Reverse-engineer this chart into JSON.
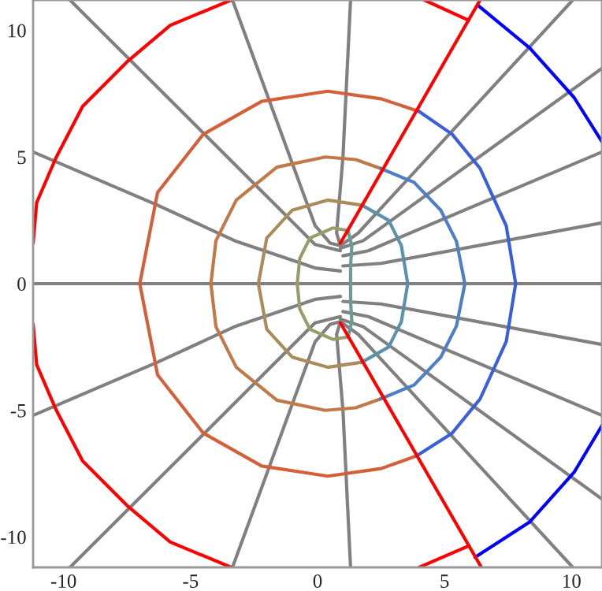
{
  "chart_data": {
    "type": "line",
    "xlim": [
      -11.2,
      11.2
    ],
    "ylim": [
      -11.2,
      11.2
    ],
    "xticks": [
      -10,
      -5,
      0,
      5,
      10
    ],
    "yticks": [
      -10,
      -5,
      0,
      5,
      10
    ],
    "grid": false,
    "marker": "none",
    "line_style": "solid",
    "series": [
      {
        "color": "#808080",
        "x": [
          -11.2,
          11.2
        ],
        "values": [
          0,
          0
        ]
      },
      {
        "color": "#808080",
        "x": [
          -9.75,
          -0.1,
          0.9
        ],
        "values": [
          11.2,
          1.55,
          1.3
        ]
      },
      {
        "color": "#808080",
        "x": [
          -3.35,
          -0.72,
          -0.1,
          0.5,
          0.9
        ],
        "values": [
          11.2,
          4.0,
          2.3,
          1.6,
          1.5
        ]
      },
      {
        "color": "#808080",
        "x": [
          -11.2,
          -6.3,
          -3.2,
          -0.1,
          0.9
        ],
        "values": [
          5.2,
          3.1,
          1.67,
          0.62,
          0.5
        ]
      },
      {
        "color": "#808080",
        "x": [
          1.3,
          1.0,
          0.75,
          0.9
        ],
        "values": [
          11.2,
          5.0,
          2.0,
          1.5
        ]
      },
      {
        "color": "#808080",
        "x": [
          0.9,
          1.6,
          10.05
        ],
        "values": [
          1.5,
          2.0,
          11.2
        ]
      },
      {
        "color": "#808080",
        "x": [
          0.9,
          1.8,
          11.2
        ],
        "values": [
          1.4,
          1.7,
          8.5
        ]
      },
      {
        "color": "#808080",
        "x": [
          1.0,
          2.0,
          11.2
        ],
        "values": [
          1.1,
          1.3,
          5.2
        ]
      },
      {
        "color": "#808080",
        "x": [
          1.0,
          2.5,
          11.2
        ],
        "values": [
          0.7,
          0.8,
          2.4
        ]
      },
      {
        "color": "#808080",
        "x": [
          -9.75,
          -0.1,
          0.9
        ],
        "values": [
          -11.2,
          -1.55,
          -1.3
        ]
      },
      {
        "color": "#808080",
        "x": [
          -3.35,
          -0.72,
          -0.1,
          0.5,
          0.9
        ],
        "values": [
          -11.2,
          -4.0,
          -2.3,
          -1.6,
          -1.5
        ]
      },
      {
        "color": "#808080",
        "x": [
          -11.2,
          -6.3,
          -3.2,
          -0.1,
          0.9
        ],
        "values": [
          -5.2,
          -3.1,
          -1.67,
          -0.62,
          -0.5
        ]
      },
      {
        "color": "#808080",
        "x": [
          1.3,
          1.0,
          0.75,
          0.9
        ],
        "values": [
          -11.2,
          -5.0,
          -2.0,
          -1.5
        ]
      },
      {
        "color": "#808080",
        "x": [
          0.9,
          1.6,
          10.05
        ],
        "values": [
          -1.5,
          -2.0,
          -11.2
        ]
      },
      {
        "color": "#808080",
        "x": [
          0.9,
          1.8,
          11.2
        ],
        "values": [
          -1.4,
          -1.7,
          -8.5
        ]
      },
      {
        "color": "#808080",
        "x": [
          1.0,
          2.0,
          11.2
        ],
        "values": [
          -1.1,
          -1.3,
          -5.2
        ]
      },
      {
        "color": "#808080",
        "x": [
          1.0,
          2.5,
          11.2
        ],
        "values": [
          -0.7,
          -0.8,
          -2.4
        ]
      },
      {
        "color": "#ff0000",
        "x": [
          4.2,
          5.94
        ],
        "values": [
          11.2,
          10.4
        ]
      },
      {
        "color": "#ff0000",
        "x": [
          -3.4,
          -5.8,
          -7.5,
          -9.25,
          -10.3,
          -11.06,
          -11.2
        ],
        "values": [
          11.2,
          10.2,
          8.76,
          7.0,
          4.97,
          3.2,
          1.6
        ]
      },
      {
        "color": "#ff0000",
        "x": [
          -11.2,
          -11.06,
          -10.3,
          -9.25,
          -7.5,
          -5.8,
          -3.4
        ],
        "values": [
          -1.6,
          -3.2,
          -4.97,
          -7.0,
          -8.76,
          -10.2,
          -11.2
        ]
      },
      {
        "color": "#ff0000",
        "x": [
          4.0,
          5.96
        ],
        "values": [
          -11.2,
          -10.35
        ]
      },
      {
        "color": "#d4603a",
        "x": [
          4.0,
          2.5,
          0.4,
          -2.2,
          -4.5,
          -6.3,
          -7.0,
          -6.3,
          -4.5,
          -2.2,
          0.4,
          2.5,
          3.9
        ],
        "values": [
          6.8,
          7.3,
          7.6,
          7.2,
          5.9,
          3.6,
          0,
          -3.6,
          -5.9,
          -7.2,
          -7.6,
          -7.3,
          -6.8
        ]
      },
      {
        "color": "#c07a48",
        "x": [
          2.48,
          1.5,
          0.3,
          -1.6,
          -3.2,
          -4.0,
          -4.2,
          -4.0,
          -3.2,
          -1.6,
          0.3,
          1.5,
          2.48
        ],
        "values": [
          4.55,
          4.9,
          5.0,
          4.6,
          3.3,
          1.7,
          0,
          -1.7,
          -3.3,
          -4.6,
          -5.0,
          -4.9,
          -4.55
        ]
      },
      {
        "color": "#a88c5c",
        "x": [
          1.75,
          0.4,
          -1.0,
          -2.0,
          -2.33,
          -2.0,
          -1.0,
          0.4,
          1.75
        ],
        "values": [
          3.1,
          3.3,
          2.9,
          1.8,
          0,
          -1.8,
          -2.9,
          -3.3,
          -3.1
        ]
      },
      {
        "color": "#9a9a6a",
        "x": [
          1.2,
          0.6,
          -0.3,
          -0.7,
          -0.8,
          -0.7,
          -0.3,
          0.6,
          1.2
        ],
        "values": [
          2.1,
          2.2,
          1.8,
          1.0,
          0,
          -1.0,
          -1.8,
          -2.2,
          -2.1
        ]
      },
      {
        "color": "#0000ff",
        "x": [
          6.3,
          8.36,
          10.1,
          11.2
        ],
        "values": [
          11.0,
          9.3,
          7.35,
          5.6
        ]
      },
      {
        "color": "#0000ff",
        "x": [
          11.2,
          10.1,
          8.36,
          6.2
        ],
        "values": [
          -5.6,
          -7.45,
          -9.4,
          -10.8
        ]
      },
      {
        "color": "#3a5fd6",
        "x": [
          4.0,
          5.3,
          6.4,
          7.43,
          7.8,
          7.43,
          6.4,
          5.3,
          3.9
        ],
        "values": [
          6.8,
          5.9,
          4.55,
          2.28,
          0,
          -2.28,
          -4.55,
          -5.9,
          -6.8
        ]
      },
      {
        "color": "#4d7fc4",
        "x": [
          2.48,
          3.8,
          4.85,
          5.47,
          5.8,
          5.47,
          4.85,
          3.8,
          2.48
        ],
        "values": [
          4.55,
          4.0,
          2.9,
          1.67,
          0,
          -1.67,
          -2.9,
          -4.0,
          -4.55
        ]
      },
      {
        "color": "#5a91ad",
        "x": [
          1.75,
          2.8,
          3.3,
          3.55,
          3.3,
          2.8,
          1.75
        ],
        "values": [
          3.1,
          2.5,
          1.5,
          0,
          -1.5,
          -2.5,
          -3.1
        ]
      },
      {
        "color": "#6a9c95",
        "x": [
          1.2,
          1.35,
          1.3,
          1.3,
          1.3,
          1.35,
          1.2
        ],
        "values": [
          2.1,
          1.5,
          0.7,
          0,
          -0.7,
          -1.5,
          -2.1
        ]
      },
      {
        "color": "#ff0000",
        "x": [
          0.9,
          6.4
        ],
        "values": [
          1.6,
          11.2
        ]
      },
      {
        "color": "#ff0000",
        "x": [
          0.9,
          6.45
        ],
        "values": [
          -1.55,
          -11.2
        ]
      }
    ]
  }
}
